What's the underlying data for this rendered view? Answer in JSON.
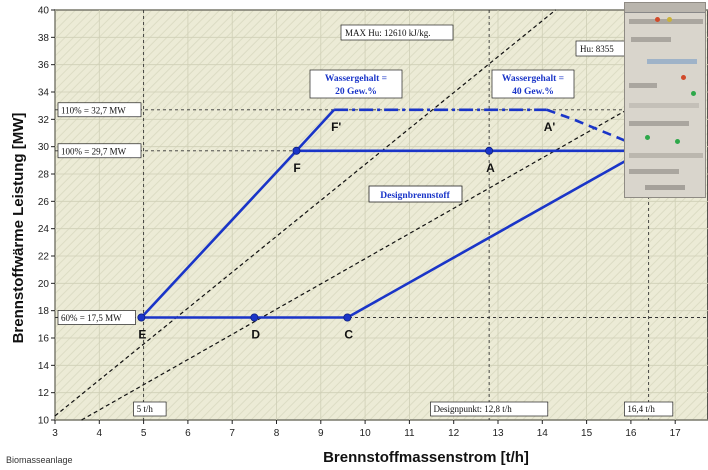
{
  "chart_data": {
    "type": "line",
    "xlabel": "Brennstoffmassenstrom [t/h]",
    "ylabel": "Brennstoffwärme Leistung [MW]",
    "xlim": [
      3,
      18
    ],
    "ylim": [
      10,
      40
    ],
    "x_ticks": [
      "3",
      "4",
      "5",
      "6",
      "7",
      "8",
      "9",
      "10",
      "11",
      "12",
      "13",
      "14",
      "15",
      "16",
      "17"
    ],
    "y_ticks": [
      "10",
      "12",
      "14",
      "16",
      "18",
      "20",
      "22",
      "24",
      "26",
      "28",
      "30",
      "32",
      "34",
      "36",
      "38",
      "40"
    ],
    "grid": true,
    "series": [
      {
        "values": [
          [
            4.95,
            17.5
          ],
          [
            8.45,
            29.7
          ],
          [
            9.3,
            32.7
          ]
        ],
        "color": "#1a35c8",
        "style": "solid"
      },
      {
        "values": [
          [
            4.95,
            17.5
          ],
          [
            9.6,
            17.5
          ],
          [
            15.9,
            29.0
          ]
        ],
        "color": "#1a35c8",
        "style": "solid"
      },
      {
        "values": [
          [
            8.45,
            29.7
          ],
          [
            16.2,
            29.7
          ]
        ],
        "color": "#1a35c8",
        "style": "solid"
      },
      {
        "values": [
          [
            9.3,
            32.7
          ],
          [
            14.1,
            32.7
          ]
        ],
        "color": "#1a35c8",
        "style": "dashdot"
      },
      {
        "values": [
          [
            14.1,
            32.7
          ],
          [
            14.7,
            32.0
          ],
          [
            16.2,
            30.0
          ]
        ],
        "color": "#1a35c8",
        "style": "dashed"
      },
      {
        "values": [
          [
            3,
            10.3
          ],
          [
            14.3,
            40
          ]
        ],
        "color": "#111111",
        "style": "dashed"
      },
      {
        "values": [
          [
            3.6,
            10
          ],
          [
            16.4,
            33.6
          ]
        ],
        "color": "#111111",
        "style": "dashed"
      }
    ],
    "reference_lines": [
      {
        "axis": "y",
        "value": 32.7,
        "label": "110% = 32,7 MW"
      },
      {
        "axis": "y",
        "value": 29.7,
        "label": "100% = 29,7 MW"
      },
      {
        "axis": "y",
        "value": 17.5,
        "label": "60% = 17,5 MW"
      },
      {
        "axis": "x",
        "value": 5,
        "label": "5 t/h"
      },
      {
        "axis": "x",
        "value": 12.8,
        "label": "Designpunkt: 12,8 t/h"
      },
      {
        "axis": "x",
        "value": 16.4,
        "label": "16,4 t/h"
      }
    ],
    "points": [
      {
        "label": "E",
        "x": 4.95,
        "y": 17.5,
        "marker": true
      },
      {
        "label": "D",
        "x": 7.5,
        "y": 17.5,
        "marker": true
      },
      {
        "label": "C",
        "x": 9.6,
        "y": 17.5,
        "marker": true
      },
      {
        "label": "F",
        "x": 8.45,
        "y": 29.7,
        "marker": true
      },
      {
        "label": "A",
        "x": 12.8,
        "y": 29.7,
        "marker": true
      },
      {
        "label": "F'",
        "x": 9.3,
        "y": 32.7,
        "marker": false
      },
      {
        "label": "A'",
        "x": 14.1,
        "y": 32.7,
        "marker": false
      }
    ],
    "annotations": {
      "max_hu": "MAX Hu: 12610 kJ/kg.",
      "hu": "Hu: 8355",
      "wasser_20": [
        "Wassergehalt =",
        "20 Gew.%"
      ],
      "wasser_40": [
        "Wassergehalt =",
        "40 Gew.%"
      ],
      "design": "Designbrennstoff"
    }
  },
  "footer": "Biomasseanlage",
  "colors": {
    "plot_bg": "#e8e8d0",
    "frame_bg": "#ffffff",
    "series_blue": "#1a35c8",
    "grid": "#c8c8b0"
  },
  "inset": {
    "icon": "control-panel-thumbnail"
  }
}
